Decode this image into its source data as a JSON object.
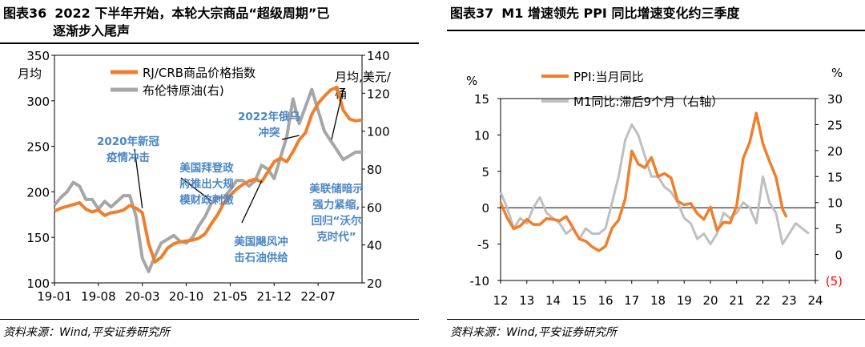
{
  "left": {
    "fig_no": "图表36",
    "title_line1": "2022 下半年开始，本轮大宗商品“超级周期”已",
    "title_line2": "逐渐步入尾声",
    "source": "资料来源：Wind,平安证券研究所"
  },
  "right": {
    "fig_no": "图表37",
    "title": "M1 增速领先 PPI 同比增速变化约三季度",
    "source": "资料来源：Wind,平安证券研究所"
  },
  "chart_data": [
    {
      "type": "line",
      "ylabel_left": "月均",
      "ylabel_right": "月均,美元/桶",
      "ylim_left": [
        100,
        350
      ],
      "ylim_right": [
        20,
        140
      ],
      "yticks_left": [
        100,
        150,
        200,
        250,
        300,
        350
      ],
      "yticks_right": [
        20,
        40,
        60,
        80,
        100,
        120,
        140
      ],
      "xticks": [
        "19-01",
        "19-08",
        "20-03",
        "20-10",
        "21-05",
        "21-12",
        "22-07"
      ],
      "legend": [
        "RJ/CRB商品价格指数",
        "布伦特原油(右)"
      ],
      "legend_position": "top-center",
      "colors": {
        "crb": "#f07f2c",
        "brent": "#a6a6a6",
        "annotation": "#4a86c5"
      },
      "series": [
        {
          "name": "RJ/CRB商品价格指数",
          "axis": "left",
          "values": [
            179,
            182,
            184,
            186,
            188,
            181,
            178,
            180,
            174,
            177,
            178,
            180,
            185,
            182,
            177,
            143,
            123,
            128,
            138,
            143,
            145,
            146,
            147,
            149,
            154,
            165,
            175,
            188,
            196,
            203,
            208,
            212,
            214,
            211,
            222,
            233,
            237,
            233,
            244,
            257,
            265,
            285,
            297,
            305,
            312,
            315,
            290,
            280,
            278,
            279
          ]
        },
        {
          "name": "布伦特原油(右)",
          "axis": "right",
          "values": [
            61,
            65,
            68,
            73,
            71,
            64,
            64,
            59,
            63,
            60,
            63,
            66,
            66,
            55,
            33,
            26,
            34,
            41,
            43,
            45,
            42,
            41,
            44,
            50,
            55,
            62,
            65,
            65,
            69,
            74,
            74,
            71,
            74,
            82,
            80,
            75,
            86,
            97,
            117,
            104,
            113,
            122,
            111,
            100,
            95,
            90,
            85,
            87,
            89,
            89
          ]
        }
      ],
      "annotations": [
        {
          "text": [
            "2020年新冠",
            "疫情冲击"
          ],
          "at_index": 14,
          "at_value": 182
        },
        {
          "text": [
            "美国拜登政",
            "府推出大规",
            "模财政刺激"
          ],
          "at_index": 25,
          "at_value": 190
        },
        {
          "text": [
            "美国飓风冲",
            "击石油供给"
          ],
          "at_index": 33,
          "at_value": 212
        },
        {
          "text": [
            "2022年俄乌",
            "冲突"
          ],
          "at_index": 39,
          "at_value": 262
        },
        {
          "text": [
            "美联储暗示",
            "强力紧缩,",
            "回归“沃尔",
            "克时代”"
          ],
          "at_index": 46,
          "at_value": 313
        }
      ]
    },
    {
      "type": "line",
      "ylabel_left": "%",
      "ylabel_right": "%",
      "ylim_left": [
        -10,
        15
      ],
      "ylim_right": [
        -5,
        30
      ],
      "yticks_left": [
        -10,
        -5,
        0,
        5,
        10,
        15
      ],
      "yticks_right": [
        -5,
        0,
        5,
        10,
        15,
        20,
        25,
        30
      ],
      "yticks_right_labels": [
        "(5)",
        "0",
        "5",
        "10",
        "15",
        "20",
        "25",
        "30"
      ],
      "xticks": [
        "12",
        "13",
        "14",
        "15",
        "16",
        "17",
        "18",
        "19",
        "20",
        "21",
        "22",
        "23",
        "24"
      ],
      "xlim": [
        12,
        24
      ],
      "legend": [
        "PPI:当月同比",
        "M1同比:滞后9个月（右轴）"
      ],
      "legend_position": "top-center",
      "colors": {
        "ppi": "#f07f2c",
        "m1": "#bfbfbf",
        "negative_tick": "#ff0000"
      },
      "series": [
        {
          "name": "PPI:当月同比",
          "axis": "left",
          "x": [
            12.0,
            12.25,
            12.5,
            12.75,
            13.0,
            13.25,
            13.5,
            13.75,
            14.0,
            14.25,
            14.5,
            14.75,
            15.0,
            15.25,
            15.5,
            15.75,
            16.0,
            16.25,
            16.5,
            16.75,
            17.0,
            17.25,
            17.5,
            17.75,
            18.0,
            18.25,
            18.5,
            18.75,
            19.0,
            19.25,
            19.5,
            19.75,
            20.0,
            20.25,
            20.5,
            20.75,
            21.0,
            21.25,
            21.5,
            21.75,
            22.0,
            22.25,
            22.5,
            22.75,
            22.9
          ],
          "values": [
            0.7,
            -1.4,
            -2.9,
            -2.5,
            -1.6,
            -2.3,
            -2.3,
            -1.5,
            -1.6,
            -1.8,
            -1.2,
            -2.7,
            -4.3,
            -4.6,
            -5.4,
            -5.9,
            -5.3,
            -2.8,
            -1.7,
            1.2,
            7.8,
            6.0,
            5.5,
            6.9,
            4.3,
            4.7,
            4.1,
            0.9,
            0.4,
            0.6,
            -0.8,
            -1.6,
            0.1,
            -3.1,
            -2.0,
            -2.1,
            0.3,
            6.8,
            9.0,
            13.0,
            8.8,
            6.4,
            4.2,
            -0.2,
            -1.3
          ]
        },
        {
          "name": "M1同比:滞后9个月（右轴）",
          "axis": "right",
          "x": [
            12.0,
            12.25,
            12.5,
            12.75,
            13.0,
            13.25,
            13.5,
            13.75,
            14.0,
            14.25,
            14.5,
            14.75,
            15.0,
            15.25,
            15.5,
            15.75,
            16.0,
            16.25,
            16.5,
            16.75,
            17.0,
            17.25,
            17.5,
            17.75,
            18.0,
            18.25,
            18.5,
            18.75,
            19.0,
            19.25,
            19.5,
            19.75,
            20.0,
            20.25,
            20.5,
            20.75,
            21.0,
            21.25,
            21.5,
            21.75,
            22.0,
            22.25,
            22.5,
            22.75,
            23.0,
            23.25,
            23.5,
            23.75
          ],
          "values": [
            12,
            9,
            5,
            7,
            6,
            9,
            11,
            8,
            7,
            6,
            4,
            5,
            3,
            5,
            4,
            4,
            5,
            10,
            15,
            22,
            25,
            23,
            19,
            15,
            15,
            13,
            12,
            10,
            7,
            6,
            3,
            4,
            2,
            4,
            8,
            7,
            8,
            10,
            9,
            6,
            15,
            10,
            8,
            2,
            4,
            6,
            5,
            4
          ]
        }
      ]
    }
  ]
}
